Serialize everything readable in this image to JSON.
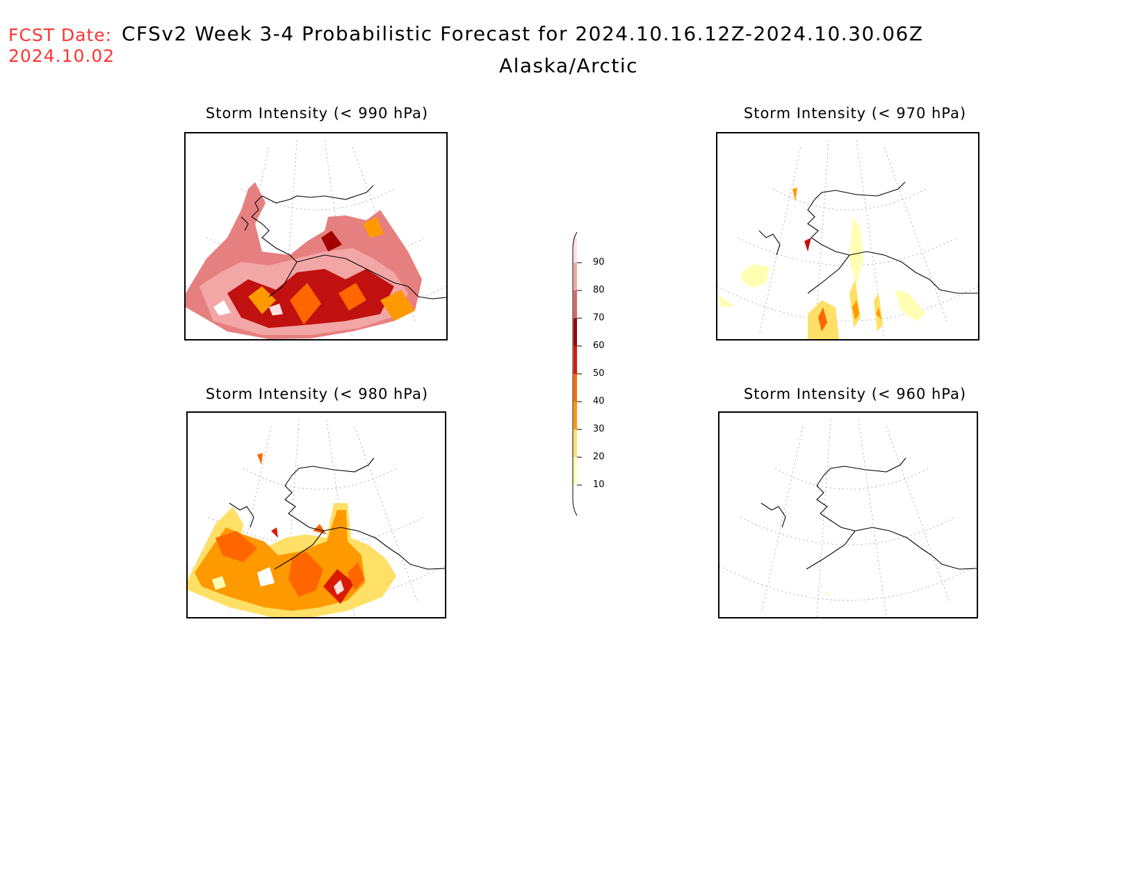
{
  "header": {
    "fcst_label": "FCST Date:",
    "fcst_date": "2024.10.02",
    "title": "CFSv2 Week 3-4 Probabilistic Forecast for 2024.10.16.12Z-2024.10.30.06Z",
    "region": "Alaska/Arctic"
  },
  "panels": [
    {
      "title": "Storm Intensity (< 990 hPa)"
    },
    {
      "title": "Storm Intensity (< 970 hPa)"
    },
    {
      "title": "Storm Intensity (< 980 hPa)"
    },
    {
      "title": "Storm Intensity (< 960 hPa)"
    }
  ],
  "colorbar": {
    "levels": [
      "90",
      "80",
      "70",
      "60",
      "50",
      "40",
      "30",
      "20",
      "10"
    ],
    "colors": [
      "#ffe0e0",
      "#f2a6a6",
      "#d96666",
      "#a30000",
      "#d91a00",
      "#ff6600",
      "#ff9900",
      "#ffe066",
      "#ffffb3",
      "#ffffff"
    ]
  }
}
